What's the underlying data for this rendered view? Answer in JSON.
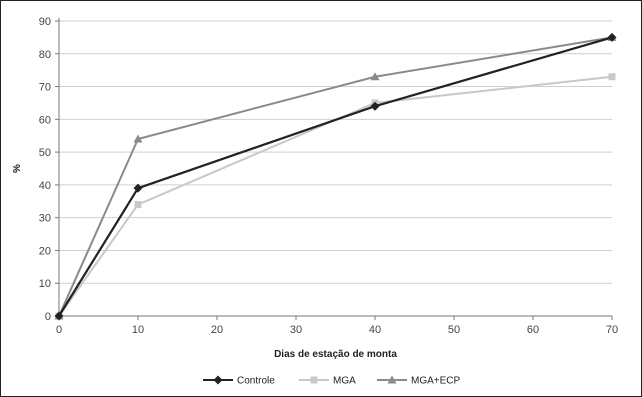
{
  "chart_data": {
    "type": "line",
    "title": "",
    "xlabel": "Dias de estação de monta",
    "ylabel": "%",
    "xlim": [
      0,
      70
    ],
    "ylim": [
      0,
      90
    ],
    "xticks": [
      0,
      10,
      20,
      30,
      40,
      50,
      60,
      70
    ],
    "yticks": [
      0,
      10,
      20,
      30,
      40,
      50,
      60,
      70,
      80,
      90
    ],
    "grid": "horizontal",
    "legend_position": "bottom",
    "series": [
      {
        "name": "Controle",
        "color": "#222222",
        "marker": "diamond",
        "x": [
          0,
          10,
          40,
          70
        ],
        "y": [
          0,
          39,
          64,
          85
        ]
      },
      {
        "name": "MGA",
        "color": "#c8c8c8",
        "marker": "square",
        "x": [
          0,
          10,
          40,
          70
        ],
        "y": [
          0,
          34,
          65,
          73
        ]
      },
      {
        "name": "MGA+ECP",
        "color": "#8a8a8a",
        "marker": "triangle",
        "x": [
          0,
          10,
          40,
          70
        ],
        "y": [
          0,
          54,
          73,
          85
        ]
      }
    ]
  }
}
